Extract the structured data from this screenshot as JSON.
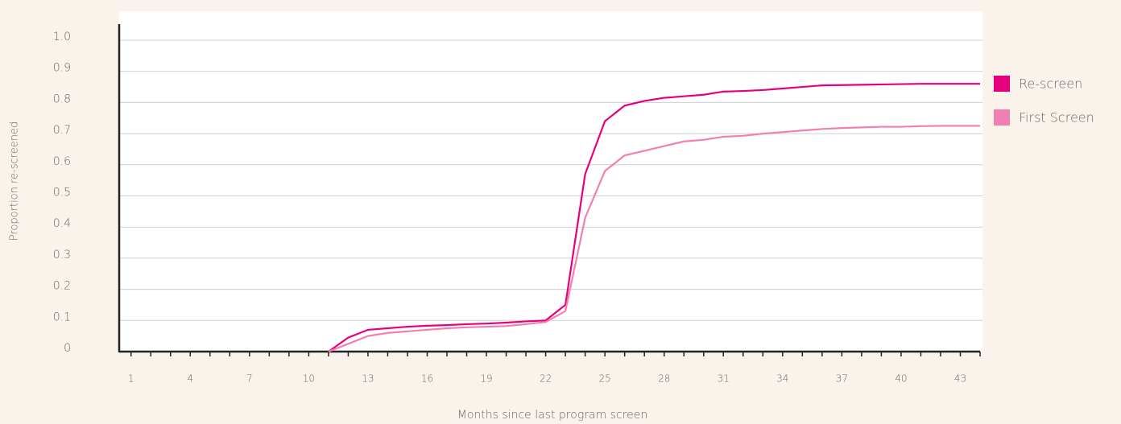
{
  "chart_data": {
    "type": "line",
    "x": [
      11,
      12,
      13,
      14,
      15,
      16,
      17,
      18,
      19,
      20,
      21,
      22,
      23,
      24,
      25,
      26,
      27,
      28,
      29,
      30,
      31,
      32,
      33,
      34,
      35,
      36,
      37,
      38,
      39,
      40,
      41,
      42,
      43,
      44
    ],
    "series": [
      {
        "name": "Re-screen",
        "color": "#e6007e",
        "values": [
          0,
          0.045,
          0.07,
          0.075,
          0.08,
          0.083,
          0.085,
          0.088,
          0.09,
          0.093,
          0.097,
          0.1,
          0.15,
          0.57,
          0.74,
          0.79,
          0.805,
          0.815,
          0.82,
          0.825,
          0.835,
          0.837,
          0.84,
          0.845,
          0.85,
          0.855,
          0.856,
          0.857,
          0.858,
          0.859,
          0.86,
          0.86,
          0.86,
          0.86
        ]
      },
      {
        "name": "First Screen",
        "color": "#f27fb2",
        "values": [
          0,
          0.025,
          0.05,
          0.06,
          0.065,
          0.07,
          0.075,
          0.078,
          0.08,
          0.082,
          0.088,
          0.095,
          0.13,
          0.43,
          0.58,
          0.63,
          0.645,
          0.66,
          0.675,
          0.68,
          0.69,
          0.693,
          0.7,
          0.705,
          0.71,
          0.715,
          0.718,
          0.72,
          0.722,
          0.722,
          0.724,
          0.725,
          0.725,
          0.725
        ]
      }
    ],
    "xlabel": "Months since last program screen",
    "ylabel": "Proportion re-screened",
    "xlim": [
      0.4,
      44
    ],
    "ylim": [
      0,
      1
    ],
    "xticks": [
      1,
      4,
      7,
      10,
      13,
      16,
      19,
      22,
      25,
      28,
      31,
      34,
      37,
      40,
      43
    ],
    "xminorticks": [
      1,
      2,
      3,
      4,
      5,
      6,
      7,
      8,
      9,
      10,
      11,
      12,
      13,
      14,
      15,
      16,
      17,
      18,
      19,
      20,
      21,
      22,
      23,
      24,
      25,
      26,
      27,
      28,
      29,
      30,
      31,
      32,
      33,
      34,
      35,
      36,
      37,
      38,
      39,
      40,
      41,
      42,
      43,
      44
    ],
    "yticks": [
      0,
      0.1,
      0.2,
      0.3,
      0.4,
      0.5,
      0.6,
      0.7,
      0.8,
      0.9,
      {
        "value": 1,
        "label": "1.0"
      }
    ],
    "grid": true,
    "legend": "right"
  }
}
